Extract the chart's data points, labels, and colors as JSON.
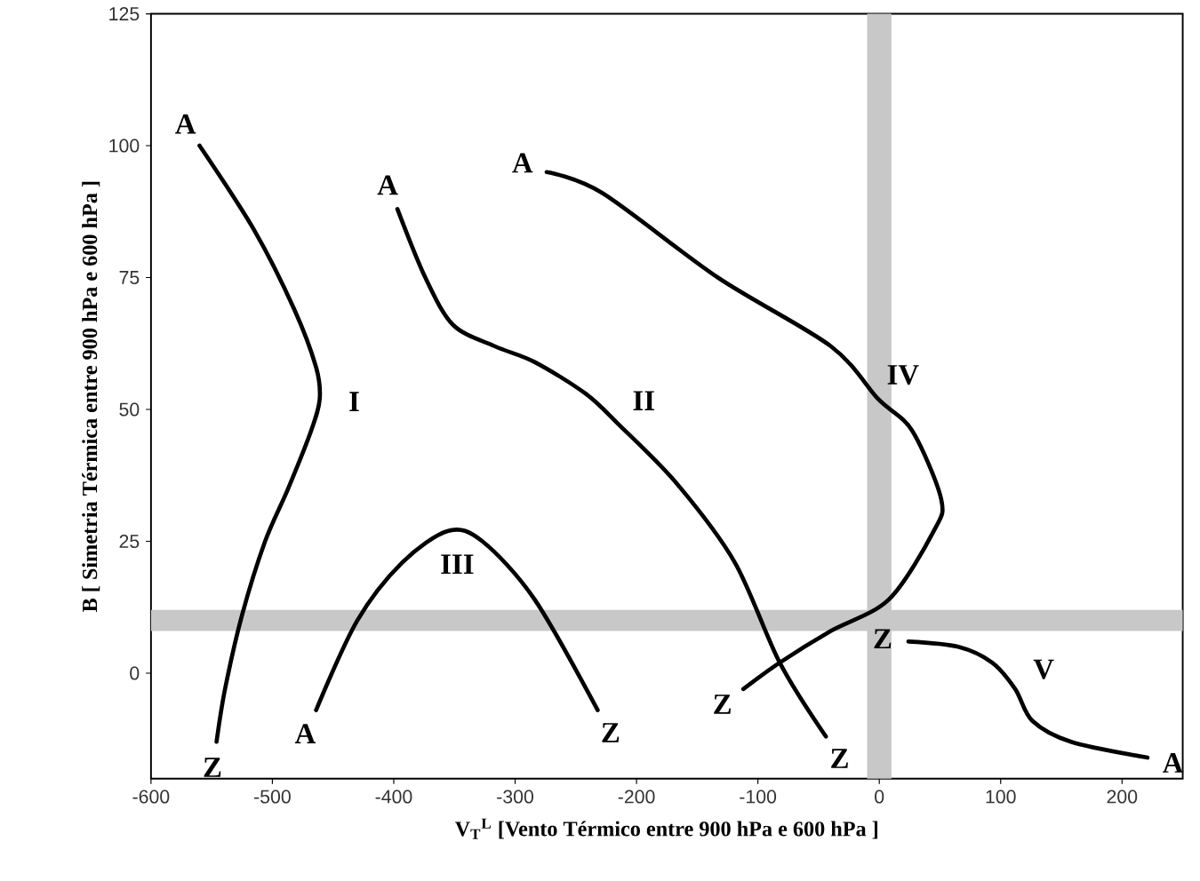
{
  "chart_data": {
    "type": "line",
    "xlabel": "V$_{T}$$^{L}$ [Vento Térmico entre 900 hPa e 600 hPa ]",
    "ylabel": "B [ Simetria Térmica entre 900 hPa e 600 hPa ]",
    "xlim": [
      -600,
      250
    ],
    "ylim": [
      -20,
      125
    ],
    "xticks": [
      -600,
      -500,
      -400,
      -300,
      -200,
      -100,
      0,
      100,
      200
    ],
    "yticks": [
      0,
      25,
      50,
      75,
      100,
      125
    ],
    "line_style": "solid",
    "bands": [
      {
        "axis": "x",
        "from": -10,
        "to": 10,
        "color": "#c8c8c8"
      },
      {
        "axis": "y",
        "from": 8,
        "to": 12,
        "color": "#c8c8c8"
      }
    ],
    "series": [
      {
        "color": "#000000",
        "x": [
          -560,
          -515,
          -482,
          -464,
          -461,
          -468,
          -487,
          -506,
          -525,
          -539,
          -546
        ],
        "values": [
          100,
          84,
          69,
          58,
          52,
          46,
          35,
          25,
          11,
          -3,
          -13
        ]
      },
      {
        "color": "#000000",
        "x": [
          -397,
          -374,
          -351,
          -317,
          -284,
          -242,
          -214,
          -167,
          -119,
          -82,
          -44
        ],
        "values": [
          88,
          75,
          66,
          62,
          59,
          53,
          47,
          36,
          21,
          2,
          -12
        ]
      },
      {
        "color": "#000000",
        "x": [
          -464,
          -430,
          -393,
          -355,
          -327,
          -284,
          -232
        ],
        "values": [
          -7,
          10,
          21,
          27,
          25,
          14,
          -7
        ]
      },
      {
        "color": "#000000",
        "x": [
          -274,
          -228,
          -133,
          -40,
          -1,
          27,
          51,
          45,
          8,
          -40,
          -82,
          -112
        ],
        "values": [
          95,
          91,
          75,
          62,
          52,
          46,
          33,
          27,
          14,
          8,
          2,
          -3
        ]
      },
      {
        "color": "#000000",
        "x": [
          24,
          65,
          93,
          112,
          126,
          158,
          221
        ],
        "values": [
          6,
          5,
          2,
          -3,
          -9,
          -13,
          -16
        ]
      }
    ],
    "annotations": [
      {
        "text": "A",
        "x": -560,
        "y": 100
      },
      {
        "text": "Z",
        "x": -546,
        "y": -13
      },
      {
        "text": "I",
        "x": -461,
        "y": 52
      },
      {
        "text": "A",
        "x": -397,
        "y": 88
      },
      {
        "text": "Z",
        "x": -44,
        "y": -12
      },
      {
        "text": "II",
        "x": -214,
        "y": 47
      },
      {
        "text": "A",
        "x": -464,
        "y": -7
      },
      {
        "text": "Z",
        "x": -232,
        "y": -7
      },
      {
        "text": "III",
        "x": -355,
        "y": 27
      },
      {
        "text": "A",
        "x": -274,
        "y": 95
      },
      {
        "text": "Z",
        "x": -112,
        "y": -3
      },
      {
        "text": "IV",
        "x": -1,
        "y": 52
      },
      {
        "text": "Z",
        "x": 24,
        "y": 6
      },
      {
        "text": "A",
        "x": 221,
        "y": -16
      },
      {
        "text": "V",
        "x": 112,
        "y": -3
      }
    ]
  }
}
